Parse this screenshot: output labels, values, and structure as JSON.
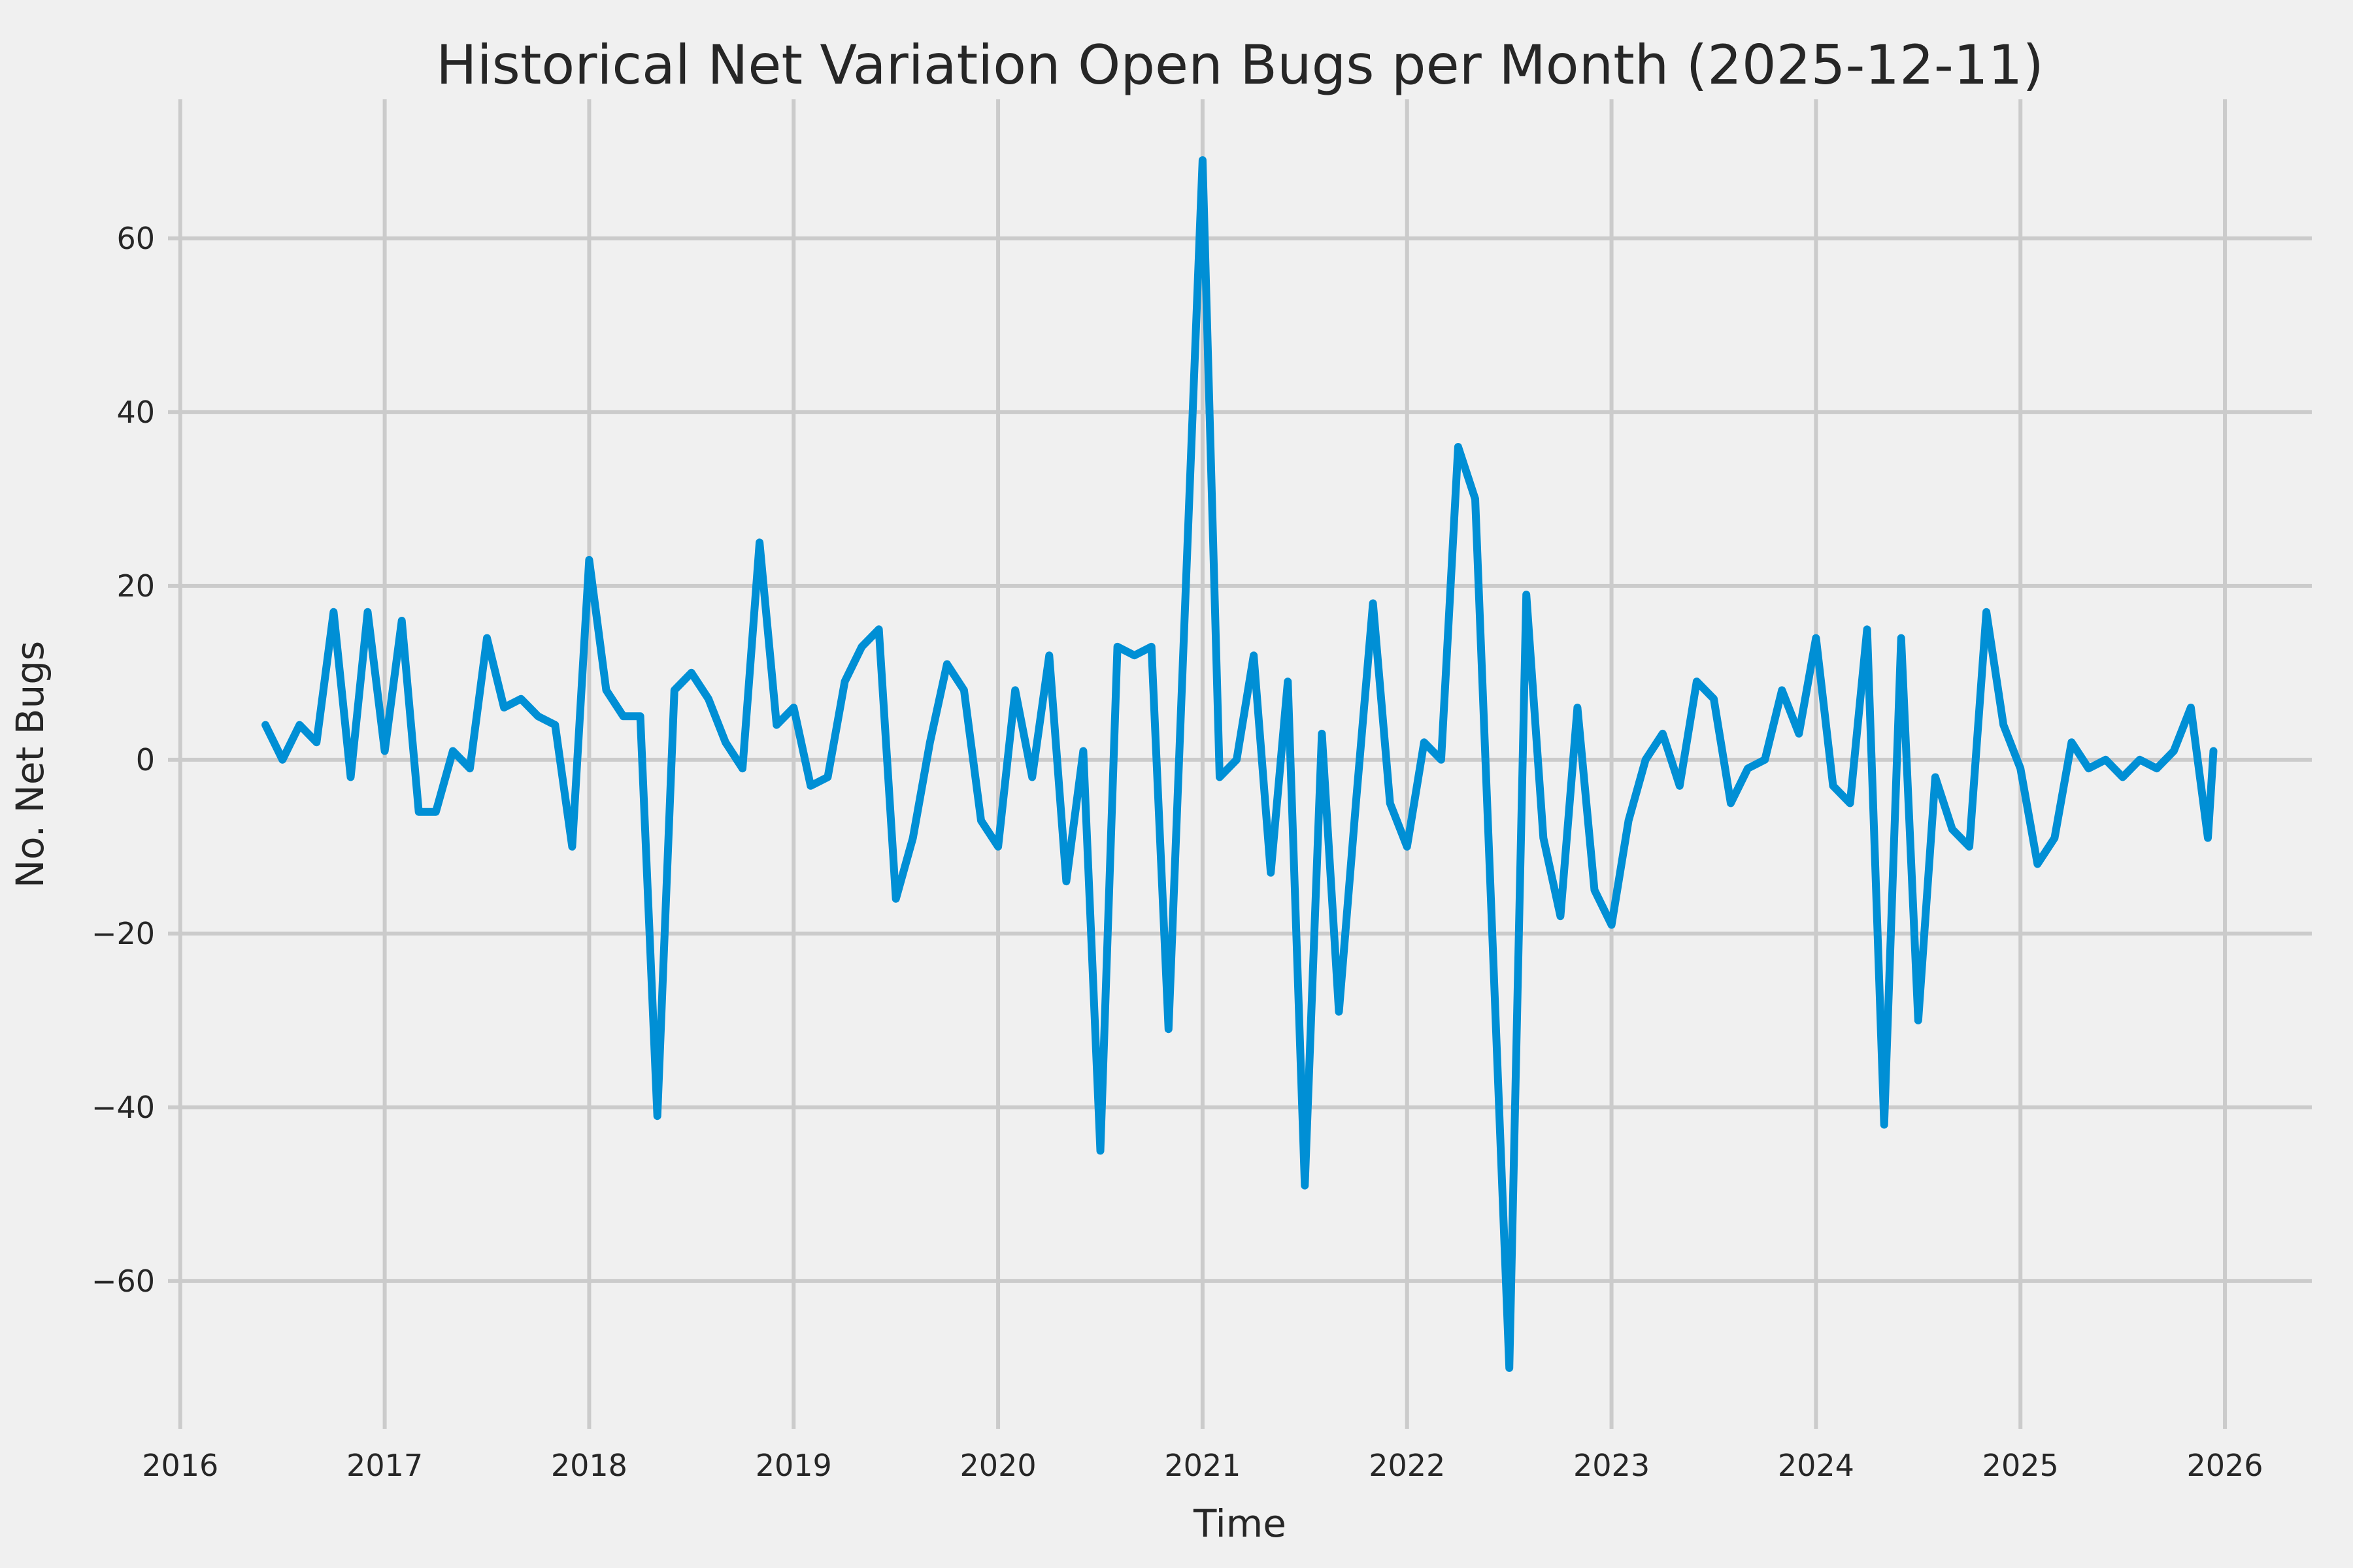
{
  "chart_data": {
    "type": "line",
    "title": "Historical Net Variation Open Bugs per Month (2025-12-11)",
    "xlabel": "Time",
    "ylabel": "No. Net Bugs",
    "grid": true,
    "legend": false,
    "x_ticks": [
      2016,
      2017,
      2018,
      2019,
      2020,
      2021,
      2022,
      2023,
      2024,
      2025,
      2026
    ],
    "y_ticks": [
      -60,
      -40,
      -20,
      0,
      20,
      40,
      60
    ],
    "xlim_years": [
      2015.94,
      2026.425
    ],
    "ylim": [
      -77,
      76
    ],
    "colors": {
      "line": "#008fd5",
      "background": "#f0f0f0",
      "grid": "#cbcbcb",
      "text": "#262626"
    },
    "series": [
      {
        "color": "#008fd5",
        "points": [
          [
            "2016-06",
            4
          ],
          [
            "2016-07",
            0
          ],
          [
            "2016-08",
            4
          ],
          [
            "2016-09",
            2
          ],
          [
            "2016-10",
            17
          ],
          [
            "2016-11",
            -2
          ],
          [
            "2016-12",
            17
          ],
          [
            "2017-01",
            1
          ],
          [
            "2017-02",
            16
          ],
          [
            "2017-03",
            -6
          ],
          [
            "2017-04",
            -6
          ],
          [
            "2017-05",
            1
          ],
          [
            "2017-06",
            -1
          ],
          [
            "2017-07",
            14
          ],
          [
            "2017-08",
            6
          ],
          [
            "2017-09",
            7
          ],
          [
            "2017-10",
            5
          ],
          [
            "2017-11",
            4
          ],
          [
            "2017-12",
            -10
          ],
          [
            "2018-01",
            23
          ],
          [
            "2018-02",
            8
          ],
          [
            "2018-03",
            5
          ],
          [
            "2018-04",
            5
          ],
          [
            "2018-05",
            -41
          ],
          [
            "2018-06",
            8
          ],
          [
            "2018-07",
            10
          ],
          [
            "2018-08",
            7
          ],
          [
            "2018-09",
            2
          ],
          [
            "2018-10",
            -1
          ],
          [
            "2018-11",
            25
          ],
          [
            "2018-12",
            4
          ],
          [
            "2019-01",
            6
          ],
          [
            "2019-02",
            -3
          ],
          [
            "2019-03",
            -2
          ],
          [
            "2019-04",
            9
          ],
          [
            "2019-05",
            13
          ],
          [
            "2019-06",
            15
          ],
          [
            "2019-07",
            -16
          ],
          [
            "2019-08",
            -9
          ],
          [
            "2019-09",
            2
          ],
          [
            "2019-10",
            11
          ],
          [
            "2019-11",
            8
          ],
          [
            "2019-12",
            -7
          ],
          [
            "2020-01",
            -10
          ],
          [
            "2020-02",
            8
          ],
          [
            "2020-03",
            -2
          ],
          [
            "2020-04",
            12
          ],
          [
            "2020-05",
            -14
          ],
          [
            "2020-06",
            1
          ],
          [
            "2020-07",
            -45
          ],
          [
            "2020-08",
            13
          ],
          [
            "2020-09",
            12
          ],
          [
            "2020-10",
            13
          ],
          [
            "2020-11",
            -31
          ],
          [
            "2020-12",
            19
          ],
          [
            "2021-01",
            69
          ],
          [
            "2021-02",
            -2
          ],
          [
            "2021-03",
            0
          ],
          [
            "2021-04",
            12
          ],
          [
            "2021-05",
            -13
          ],
          [
            "2021-06",
            9
          ],
          [
            "2021-07",
            -49
          ],
          [
            "2021-08",
            3
          ],
          [
            "2021-09",
            -29
          ],
          [
            "2021-10",
            -5
          ],
          [
            "2021-11",
            18
          ],
          [
            "2021-12",
            -5
          ],
          [
            "2022-01",
            -10
          ],
          [
            "2022-02",
            2
          ],
          [
            "2022-03",
            0
          ],
          [
            "2022-04",
            36
          ],
          [
            "2022-05",
            30
          ],
          [
            "2022-06",
            -20
          ],
          [
            "2022-07",
            -70
          ],
          [
            "2022-08",
            19
          ],
          [
            "2022-09",
            -9
          ],
          [
            "2022-10",
            -18
          ],
          [
            "2022-11",
            6
          ],
          [
            "2022-12",
            -15
          ],
          [
            "2023-01",
            -19
          ],
          [
            "2023-02",
            -7
          ],
          [
            "2023-03",
            0
          ],
          [
            "2023-04",
            3
          ],
          [
            "2023-05",
            -3
          ],
          [
            "2023-06",
            9
          ],
          [
            "2023-07",
            7
          ],
          [
            "2023-08",
            -5
          ],
          [
            "2023-09",
            -1
          ],
          [
            "2023-10",
            0
          ],
          [
            "2023-11",
            8
          ],
          [
            "2023-12",
            3
          ],
          [
            "2024-01",
            14
          ],
          [
            "2024-02",
            -3
          ],
          [
            "2024-03",
            -5
          ],
          [
            "2024-04",
            15
          ],
          [
            "2024-05",
            -42
          ],
          [
            "2024-06",
            14
          ],
          [
            "2024-07",
            -30
          ],
          [
            "2024-08",
            -2
          ],
          [
            "2024-09",
            -8
          ],
          [
            "2024-10",
            -10
          ],
          [
            "2024-11",
            17
          ],
          [
            "2024-12",
            4
          ],
          [
            "2025-01",
            -1
          ],
          [
            "2025-02",
            -12
          ],
          [
            "2025-03",
            -9
          ],
          [
            "2025-04",
            2
          ],
          [
            "2025-05",
            -1
          ],
          [
            "2025-06",
            0
          ],
          [
            "2025-07",
            -2
          ],
          [
            "2025-08",
            0
          ],
          [
            "2025-09",
            -1
          ],
          [
            "2025-10",
            1
          ],
          [
            "2025-11",
            6
          ],
          [
            "2025-12",
            -9
          ],
          [
            "2025-12-11",
            1
          ]
        ]
      }
    ]
  }
}
